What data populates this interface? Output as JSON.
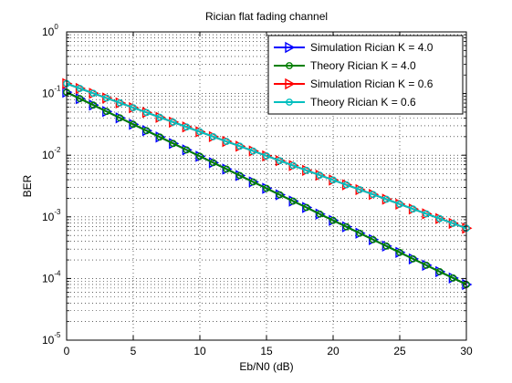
{
  "chart_data": {
    "type": "line",
    "title": "Rician flat fading channel",
    "xlabel": "Eb/N0 (dB)",
    "ylabel": "BER",
    "xlim": [
      0,
      30
    ],
    "ylim": [
      1e-05,
      1
    ],
    "yscale": "log",
    "grid": true,
    "legend_position": "top-right",
    "x_ticks": [
      0,
      5,
      10,
      15,
      20,
      25,
      30
    ],
    "x_tick_labels": [
      "0",
      "5",
      "10",
      "15",
      "20",
      "25",
      "30"
    ],
    "y_ticks": [
      1e-05,
      0.0001,
      0.001,
      0.01,
      0.1,
      1
    ],
    "y_tick_labels": [
      {
        "base": "10",
        "exp": "-5"
      },
      {
        "base": "10",
        "exp": "-4"
      },
      {
        "base": "10",
        "exp": "-3"
      },
      {
        "base": "10",
        "exp": "-2"
      },
      {
        "base": "10",
        "exp": "-1"
      },
      {
        "base": "10",
        "exp": "0"
      }
    ],
    "x": [
      0,
      1,
      2,
      3,
      4,
      5,
      6,
      7,
      8,
      9,
      10,
      11,
      12,
      13,
      14,
      15,
      16,
      17,
      18,
      19,
      20,
      21,
      22,
      23,
      24,
      25,
      26,
      27,
      28,
      29,
      30
    ],
    "series": [
      {
        "name": "Simulation Rician K = 4.0",
        "color": "#0000ff",
        "marker": "triangle-right",
        "values": [
          0.105,
          0.0827,
          0.0651,
          0.0512,
          0.0403,
          0.0317,
          0.025,
          0.0197,
          0.0155,
          0.0122,
          0.0096,
          0.00756,
          0.00595,
          0.00468,
          0.00369,
          0.0029,
          0.00228,
          0.0018,
          0.00142,
          0.00111,
          0.000876,
          0.00069,
          0.000543,
          0.000427,
          0.000336,
          0.000265,
          0.000208,
          0.000164,
          0.000129,
          0.000102,
          8e-05
        ]
      },
      {
        "name": "Theory Rician K = 4.0",
        "color": "#008000",
        "marker": "circle",
        "values": [
          0.105,
          0.0827,
          0.0651,
          0.0512,
          0.0403,
          0.0317,
          0.025,
          0.0197,
          0.0155,
          0.0122,
          0.0096,
          0.00756,
          0.00595,
          0.00468,
          0.00369,
          0.0029,
          0.00228,
          0.0018,
          0.00142,
          0.00111,
          0.000876,
          0.00069,
          0.000543,
          0.000427,
          0.000336,
          0.000265,
          0.000208,
          0.000164,
          0.000129,
          0.000102,
          8e-05
        ]
      },
      {
        "name": "Simulation Rician K = 0.6",
        "color": "#ff0000",
        "marker": "triangle-right",
        "values": [
          0.145,
          0.121,
          0.101,
          0.0846,
          0.0706,
          0.059,
          0.0493,
          0.0411,
          0.0344,
          0.0287,
          0.024,
          0.02,
          0.0167,
          0.014,
          0.0117,
          0.00974,
          0.00814,
          0.0068,
          0.00568,
          0.00474,
          0.00396,
          0.00331,
          0.00276,
          0.00231,
          0.00193,
          0.00161,
          0.00134,
          0.00112,
          0.000937,
          0.000783,
          0.000654
        ]
      },
      {
        "name": "Theory Rician K = 0.6",
        "color": "#00bfbf",
        "marker": "circle",
        "values": [
          0.145,
          0.121,
          0.101,
          0.0846,
          0.0706,
          0.059,
          0.0493,
          0.0411,
          0.0344,
          0.0287,
          0.024,
          0.02,
          0.0167,
          0.014,
          0.0117,
          0.00974,
          0.00814,
          0.0068,
          0.00568,
          0.00474,
          0.00396,
          0.00331,
          0.00276,
          0.00231,
          0.00193,
          0.00161,
          0.00134,
          0.00112,
          0.000937,
          0.000783,
          0.000654
        ]
      }
    ]
  }
}
